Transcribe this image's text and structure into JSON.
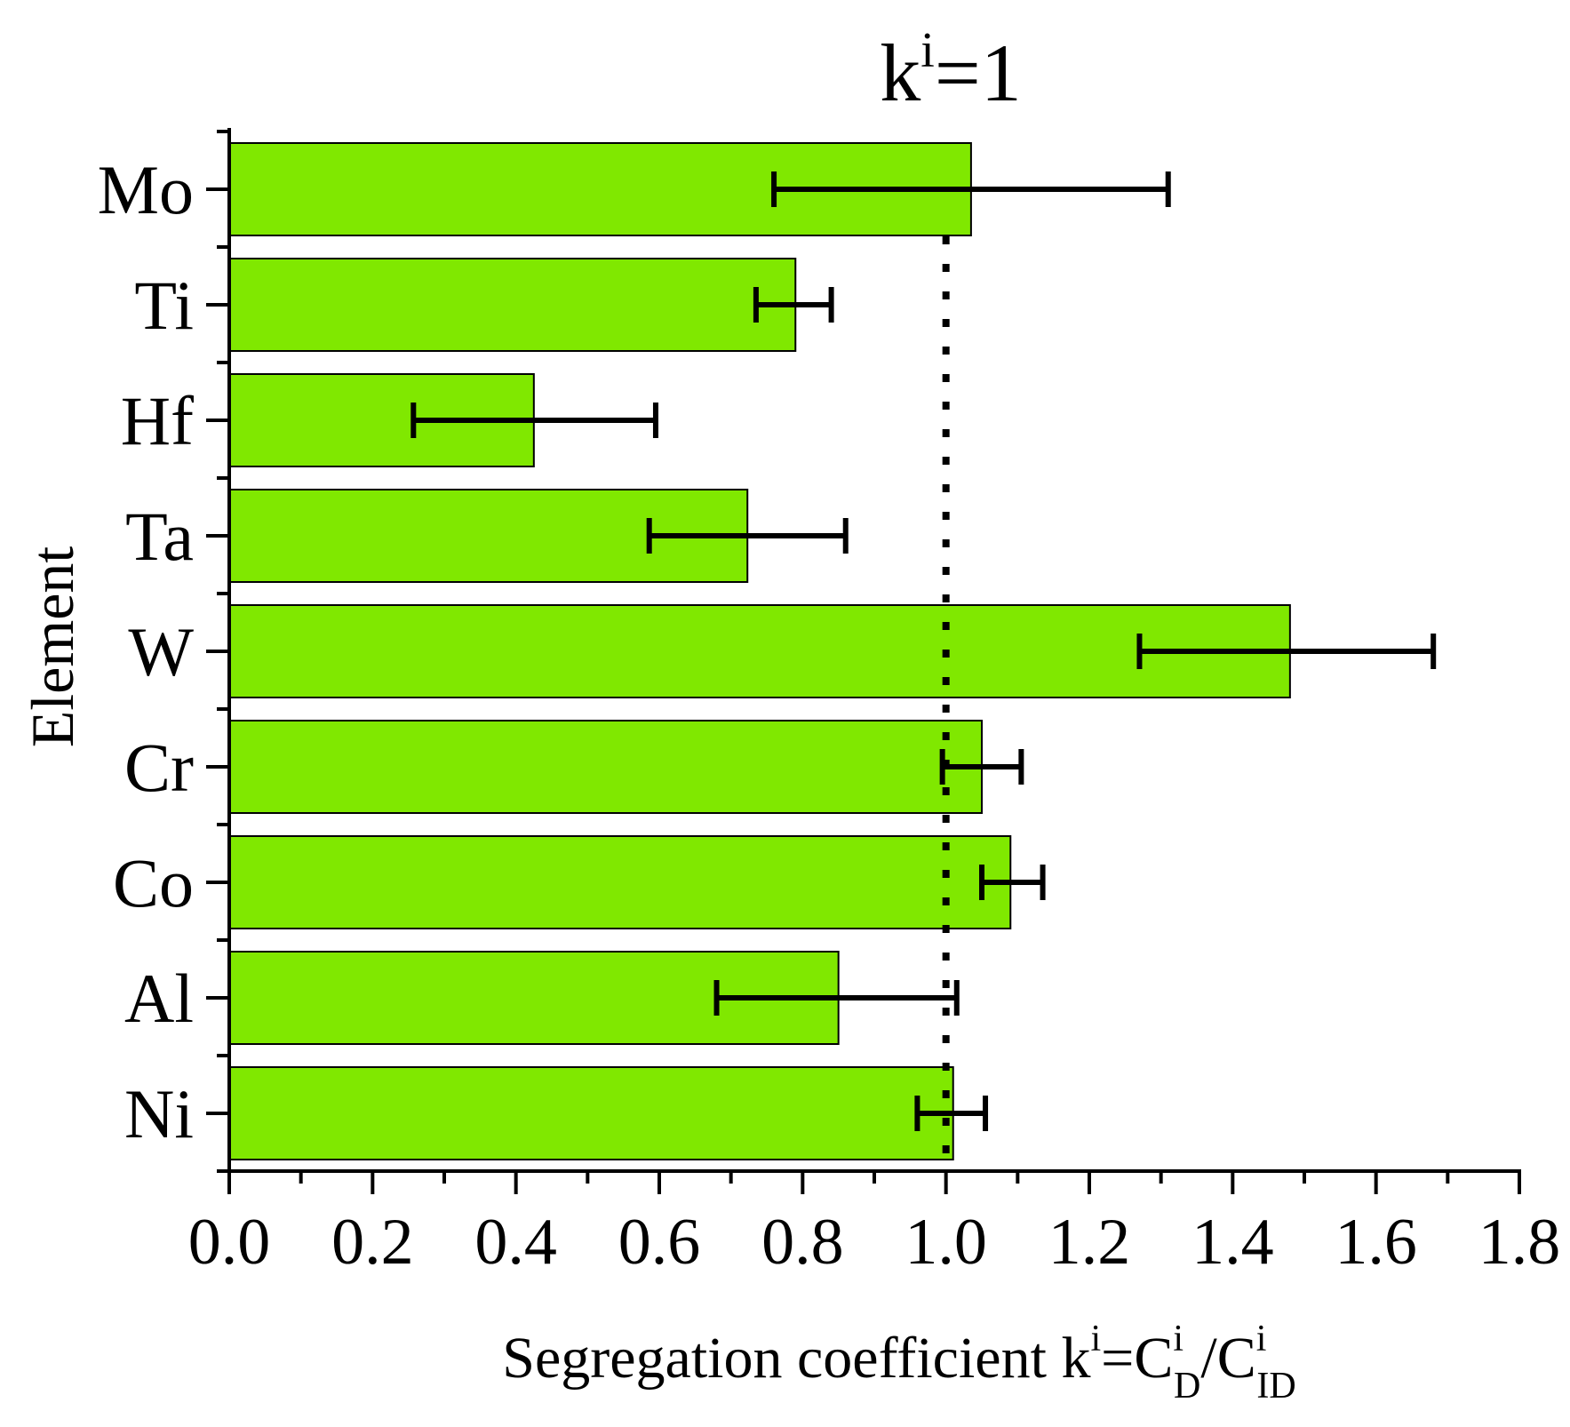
{
  "chart_data": {
    "type": "bar",
    "orientation": "horizontal",
    "categories": [
      "Mo",
      "Ti",
      "Hf",
      "Ta",
      "W",
      "Cr",
      "Co",
      "Al",
      "Ni"
    ],
    "values": [
      1.035,
      0.79,
      0.425,
      0.723,
      1.48,
      1.05,
      1.09,
      0.85,
      1.01
    ],
    "error_ranges": [
      [
        0.76,
        1.31
      ],
      [
        0.735,
        0.84
      ],
      [
        0.257,
        0.595
      ],
      [
        0.586,
        0.86
      ],
      [
        1.27,
        1.68
      ],
      [
        0.995,
        1.105
      ],
      [
        1.05,
        1.135
      ],
      [
        0.68,
        1.015
      ],
      [
        0.96,
        1.055
      ]
    ],
    "xlim": [
      0,
      1.8
    ],
    "xticks": [
      "0.0",
      "0.2",
      "0.4",
      "0.6",
      "0.8",
      "1.0",
      "1.2",
      "1.4",
      "1.6",
      "1.8"
    ],
    "reference_line": {
      "x": 1.0,
      "style": "dotted"
    },
    "title": {
      "base": "k",
      "sup": "i",
      "rest": "=1"
    },
    "xlabel": {
      "text": "Segregation coefficient k",
      "sup1": "i",
      "eq": "=C",
      "sup2": "i",
      "sub2": "D",
      "slash": "/C",
      "sup3": "i",
      "sub3": "ID"
    },
    "ylabel": "Element",
    "bar_color": "#80e800",
    "edge_color": "#000000"
  }
}
